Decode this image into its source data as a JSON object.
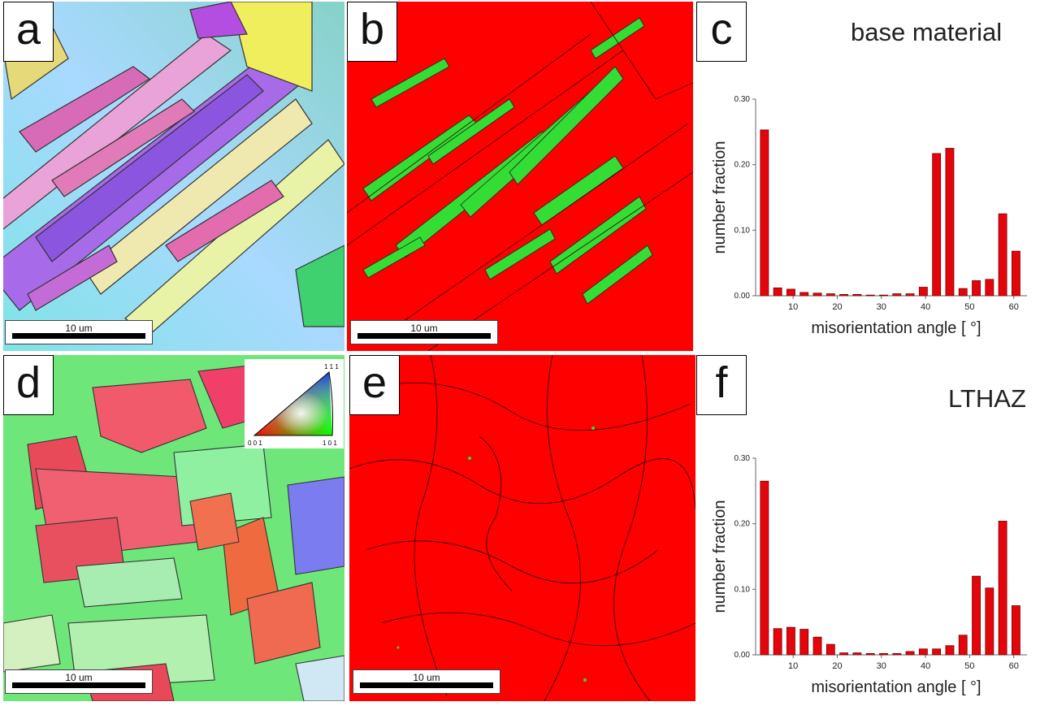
{
  "panels": {
    "a": {
      "label": "a",
      "scale": "10 um"
    },
    "b": {
      "label": "b",
      "scale": "10 um"
    },
    "c": {
      "label": "c",
      "title": "base material"
    },
    "d": {
      "label": "d",
      "scale": "10 um",
      "ipf_key": {
        "top": "1 1 1",
        "left": "0 0 1",
        "right": "1 0 1"
      }
    },
    "e": {
      "label": "e",
      "scale": "10 um"
    },
    "f": {
      "label": "f",
      "title": "LTHAZ"
    }
  },
  "colors": {
    "phase_red": "#ff0000",
    "phase_green": "#33dd33",
    "bar_fill": "#e4050c",
    "bar_edge": "#7a0000"
  },
  "chart_data": [
    {
      "type": "bar",
      "title": "base material",
      "xlabel": "misorientation angle [ °]",
      "ylabel": "number fraction",
      "x": [
        3.5,
        6.5,
        9.5,
        12.5,
        15.5,
        18.5,
        21.5,
        24.5,
        27.5,
        30.5,
        33.5,
        36.5,
        39.5,
        42.5,
        45.5,
        48.5,
        51.5,
        54.5,
        57.5,
        60.5
      ],
      "values": [
        0.253,
        0.012,
        0.01,
        0.005,
        0.004,
        0.003,
        0.002,
        0.002,
        0.001,
        0.001,
        0.003,
        0.003,
        0.013,
        0.217,
        0.225,
        0.011,
        0.023,
        0.025,
        0.125,
        0.068
      ],
      "xticks": [
        10,
        20,
        30,
        40,
        50,
        60
      ],
      "yticks": [
        "0.00",
        "0.10",
        "0.20",
        "0.30"
      ],
      "xlim": [
        1.5,
        63
      ],
      "ylim": [
        0,
        0.3
      ]
    },
    {
      "type": "bar",
      "title": "LTHAZ",
      "xlabel": "misorientation angle [ °]",
      "ylabel": "number fraction",
      "x": [
        3.5,
        6.5,
        9.5,
        12.5,
        15.5,
        18.5,
        21.5,
        24.5,
        27.5,
        30.5,
        33.5,
        36.5,
        39.5,
        42.5,
        45.5,
        48.5,
        51.5,
        54.5,
        57.5,
        60.5
      ],
      "values": [
        0.265,
        0.04,
        0.042,
        0.039,
        0.027,
        0.016,
        0.003,
        0.003,
        0.002,
        0.002,
        0.002,
        0.005,
        0.009,
        0.009,
        0.014,
        0.03,
        0.12,
        0.102,
        0.204,
        0.075
      ],
      "xticks": [
        10,
        20,
        30,
        40,
        50,
        60
      ],
      "yticks": [
        "0.00",
        "0.10",
        "0.20",
        "0.30"
      ],
      "xlim": [
        1.5,
        63
      ],
      "ylim": [
        0,
        0.3
      ]
    }
  ]
}
